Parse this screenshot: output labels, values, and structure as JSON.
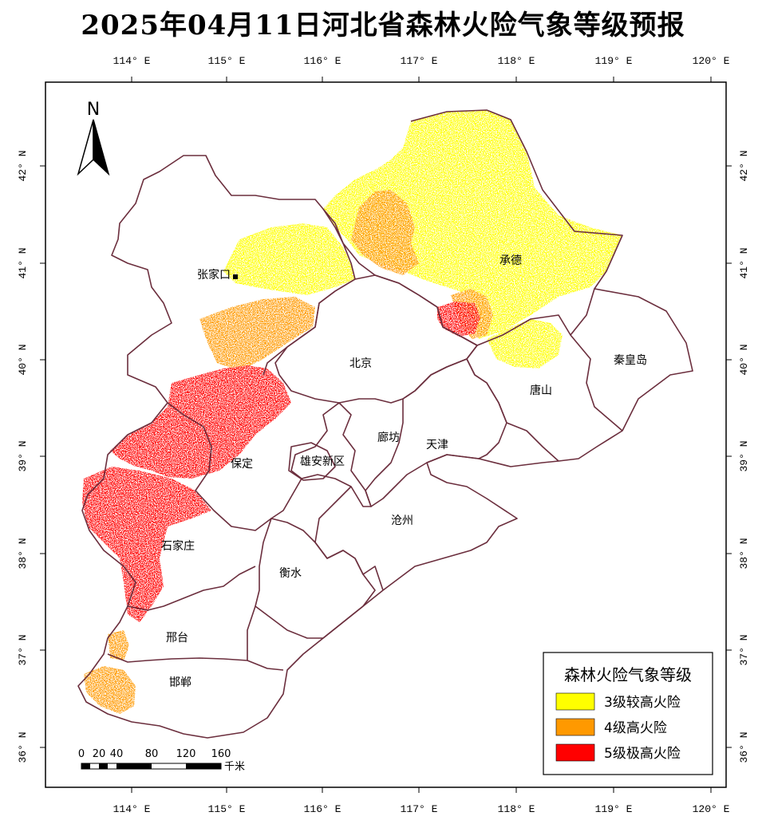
{
  "title": "2025年04月11日河北省森林火险气象等级预报",
  "axes": {
    "lon_labels": [
      "114° E",
      "115° E",
      "116° E",
      "117° E",
      "118° E",
      "119° E",
      "120° E"
    ],
    "lat_labels": [
      "42° N",
      "41° N",
      "40° N",
      "39° N",
      "38° N",
      "37° N",
      "36° N"
    ]
  },
  "north_arrow": {
    "label": "N"
  },
  "cities": [
    {
      "name": "张家口"
    },
    {
      "name": "承德"
    },
    {
      "name": "北京"
    },
    {
      "name": "秦皇岛"
    },
    {
      "name": "唐山"
    },
    {
      "name": "廊坊"
    },
    {
      "name": "天津"
    },
    {
      "name": "保定"
    },
    {
      "name": "雄安新区"
    },
    {
      "name": "沧州"
    },
    {
      "name": "石家庄"
    },
    {
      "name": "衡水"
    },
    {
      "name": "邢台"
    },
    {
      "name": "邯郸"
    }
  ],
  "legend": {
    "title": "森林火险气象等级",
    "items": [
      {
        "label": "3级较高火险",
        "color": "#ffff00"
      },
      {
        "label": "4级高火险",
        "color": "#ff9900"
      },
      {
        "label": "5级极高火险",
        "color": "#ff0000"
      }
    ]
  },
  "scale_bar": {
    "labels": [
      "0",
      "20",
      "40",
      "80",
      "120",
      "160"
    ],
    "unit": "千米"
  },
  "colors": {
    "boundary": "#6b2e3d",
    "frame": "#000000"
  }
}
